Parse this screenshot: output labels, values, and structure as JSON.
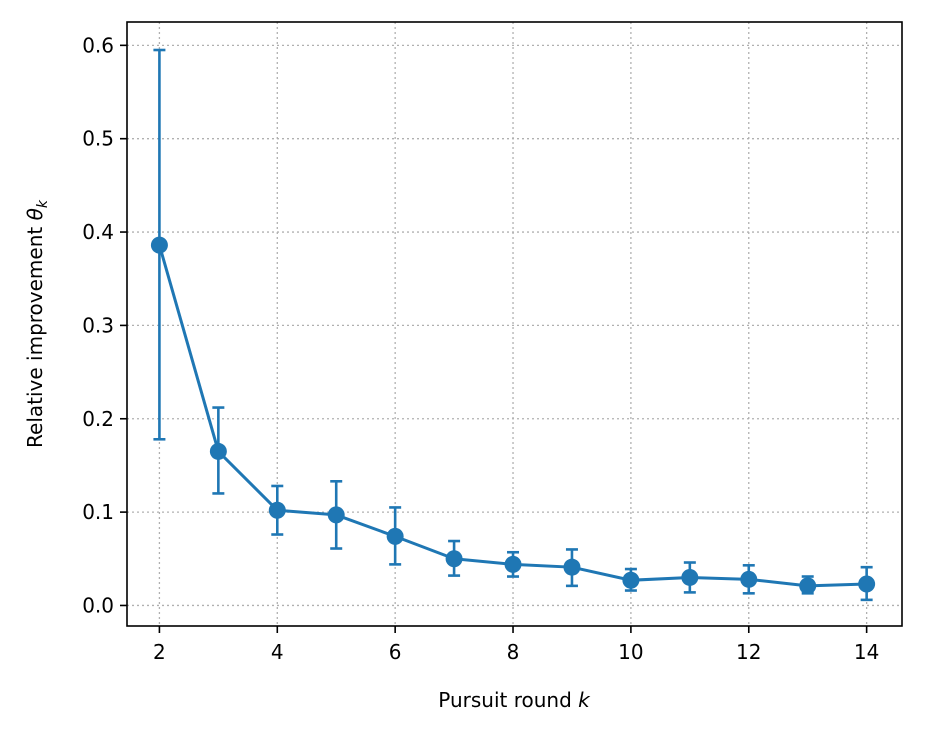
{
  "chart_data": {
    "type": "line",
    "title": "",
    "xlabel": {
      "text": "Pursuit round ",
      "var": "k"
    },
    "ylabel": {
      "text": "Relative improvement ",
      "var": "θ",
      "sub": "k"
    },
    "xlim": [
      1.45,
      14.6
    ],
    "ylim": [
      -0.022,
      0.625
    ],
    "xticks": [
      2,
      4,
      6,
      8,
      10,
      12,
      14
    ],
    "yticks": [
      0.0,
      0.1,
      0.2,
      0.3,
      0.4,
      0.5,
      0.6
    ],
    "ytick_labels": [
      "0.0",
      "0.1",
      "0.2",
      "0.3",
      "0.4",
      "0.5",
      "0.6"
    ],
    "grid": true,
    "color": "#1f77b4",
    "series": [
      {
        "x": [
          2,
          3,
          4,
          5,
          6,
          7,
          8,
          9,
          10,
          11,
          12,
          13,
          14
        ],
        "y": [
          0.386,
          0.165,
          0.102,
          0.097,
          0.074,
          0.05,
          0.044,
          0.041,
          0.027,
          0.03,
          0.028,
          0.021,
          0.023
        ],
        "err_low": [
          0.178,
          0.12,
          0.076,
          0.061,
          0.044,
          0.032,
          0.031,
          0.021,
          0.016,
          0.014,
          0.013,
          0.013,
          0.006
        ],
        "err_high": [
          0.595,
          0.212,
          0.128,
          0.133,
          0.105,
          0.069,
          0.057,
          0.06,
          0.039,
          0.046,
          0.043,
          0.031,
          0.041
        ]
      }
    ]
  }
}
